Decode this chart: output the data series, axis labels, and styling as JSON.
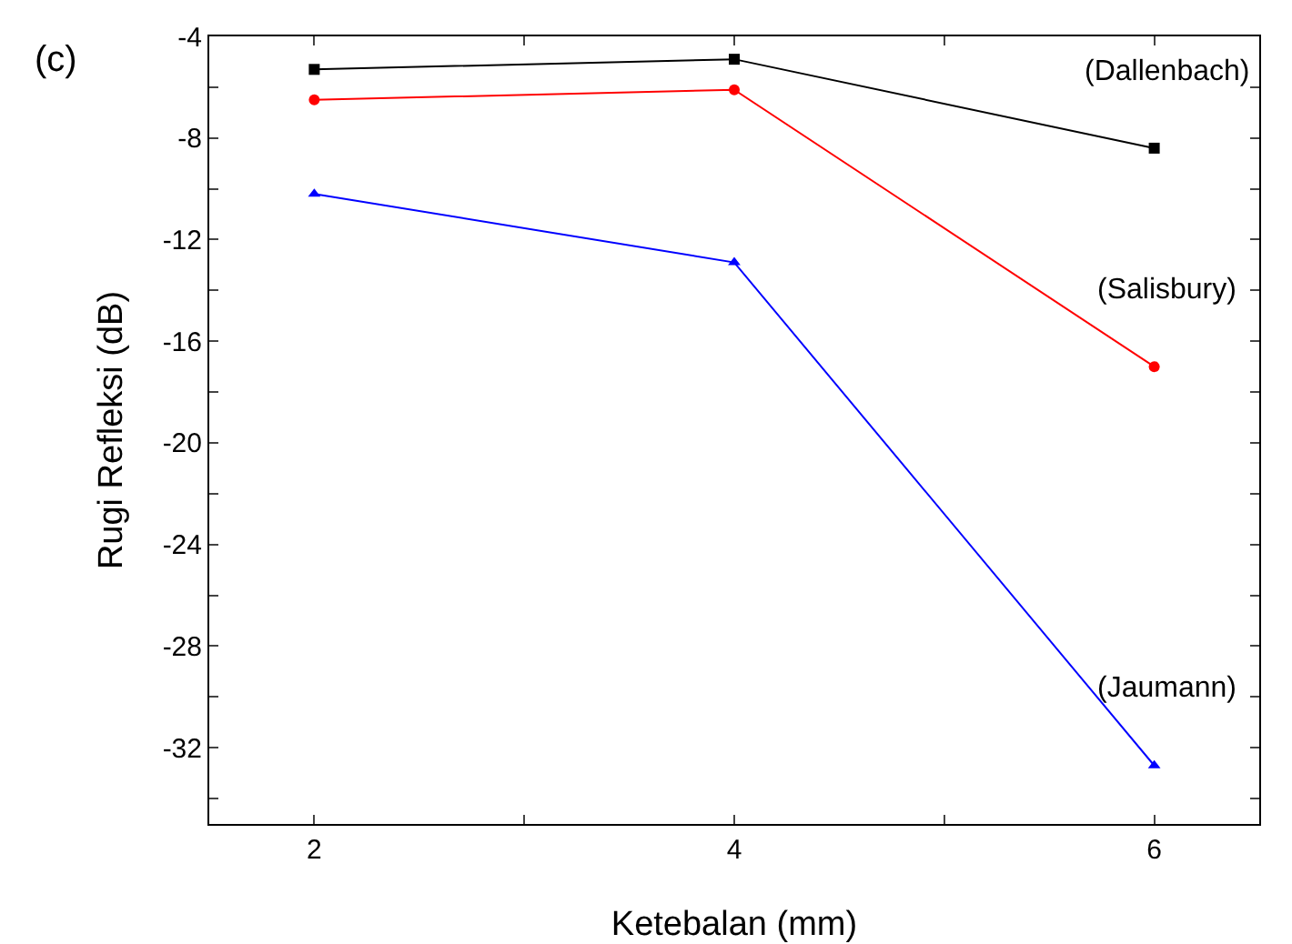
{
  "chart_data": {
    "type": "line",
    "xlabel": "Ketebalan (mm)",
    "ylabel": "Rugi Refleksi (dB)",
    "annotations": [
      "(c)"
    ],
    "x": [
      2,
      4,
      6
    ],
    "series": [
      {
        "name": "(Dallenbach)",
        "color": "#000000",
        "marker": "square",
        "values": [
          -5.3,
          -4.9,
          -8.4
        ]
      },
      {
        "name": "(Salisbury)",
        "color": "#ff0000",
        "marker": "circle",
        "values": [
          -6.5,
          -6.1,
          -17.0
        ]
      },
      {
        "name": "(Jaumann)",
        "color": "#0000ff",
        "marker": "triangle",
        "values": [
          -10.2,
          -12.9,
          -32.7
        ]
      }
    ],
    "xlim": [
      1.5,
      6.5
    ],
    "xticks": [
      2,
      {
        "value": 3,
        "label": null
      },
      4,
      {
        "value": 5,
        "label": null
      },
      6
    ],
    "ylim": [
      -35,
      -4
    ],
    "yticks": [
      -4,
      {
        "value": -6,
        "label": null
      },
      -8,
      {
        "value": -10,
        "label": null
      },
      -12,
      {
        "value": -14,
        "label": null
      },
      -16,
      {
        "value": -18,
        "label": null
      },
      -20,
      {
        "value": -22,
        "label": null
      },
      -24,
      {
        "value": -26,
        "label": null
      },
      -28,
      {
        "value": -30,
        "label": null
      },
      -32,
      {
        "value": -34,
        "label": null
      }
    ],
    "grid": false,
    "legend": false,
    "line_style": "solid"
  }
}
